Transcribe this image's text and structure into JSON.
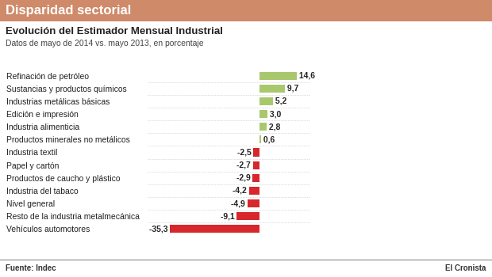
{
  "header": "Disparidad sectorial",
  "source": "Fuente: Indec",
  "credit": "El Cronista",
  "chart_data": {
    "type": "bar",
    "orientation": "horizontal",
    "title": "Evolución del Estimador Mensual Industrial",
    "subtitle": "Datos de mayo de 2014 vs. mayo 2013, en porcentaje",
    "categories": [
      "Refinación de petróleo",
      "Sustancias y productos químicos",
      "Industrias metálicas básicas",
      "Edición e impresión",
      "Industria alimenticia",
      "Productos minerales no metálicos",
      "Industria textil",
      "Papel y cartón",
      "Productos de caucho y plástico",
      "Industria del tabaco",
      "Nivel general",
      "Resto de la industria metalmecánica",
      "Vehículos automotores"
    ],
    "values": [
      14.6,
      9.7,
      5.2,
      3.0,
      2.8,
      0.6,
      -2.5,
      -2.7,
      -2.9,
      -4.2,
      -4.9,
      -9.1,
      -35.3
    ],
    "value_labels": [
      "14,6",
      "9,7",
      "5,2",
      "3,0",
      "2,8",
      "0,6",
      "-2,5",
      "-2,7",
      "-2,9",
      "-4,2",
      "-4,9",
      "-9,1",
      "-35,3"
    ],
    "colors": [
      "#a9c86e",
      "#a9c86e",
      "#a9c86e",
      "#a9c86e",
      "#a9c86e",
      "#a9c86e",
      "#d7262c",
      "#d7262c",
      "#d7262c",
      "#d7262c",
      "#d7262c",
      "#d7262c",
      "#d7262c"
    ],
    "data_labels": true,
    "grid": false
  }
}
